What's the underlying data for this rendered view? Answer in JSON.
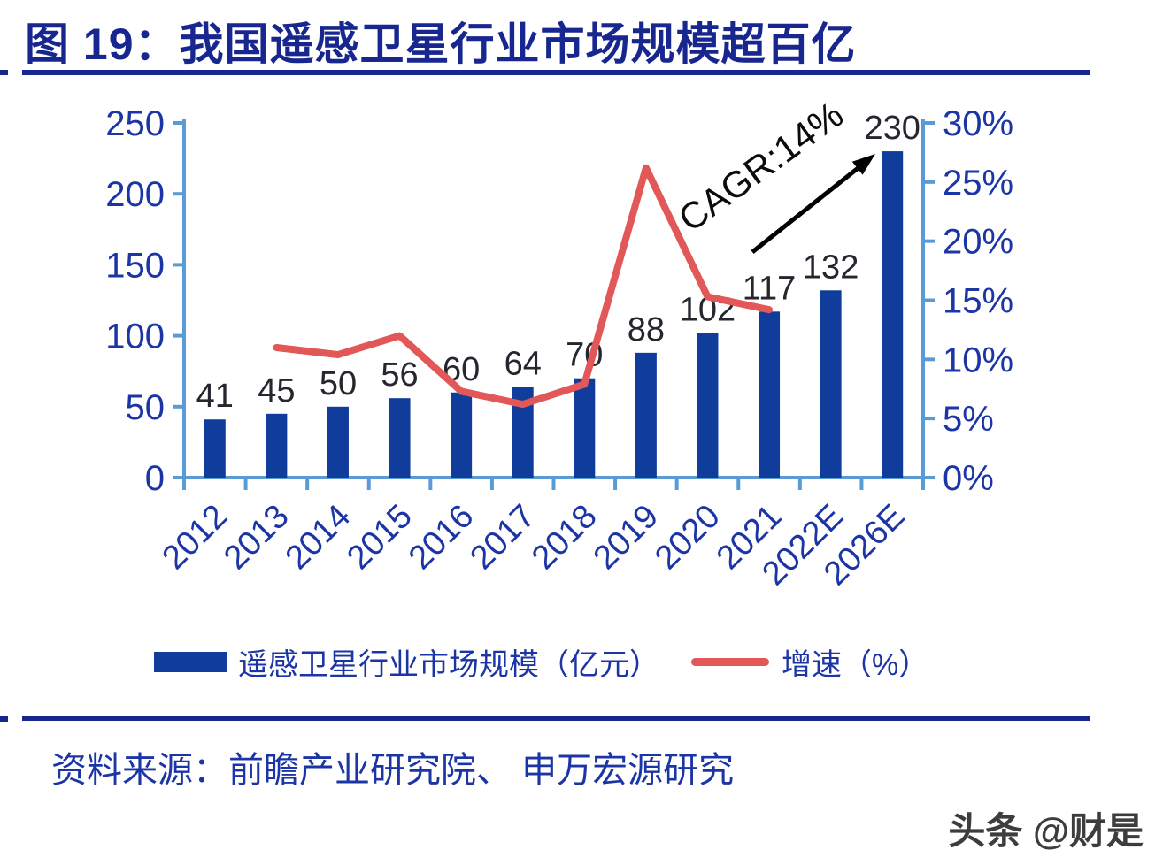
{
  "title": "图 19：我国遥感卫星行业市场规模超百亿",
  "source": "资料来源：前瞻产业研究院、 申万宏源研究",
  "watermark": "头条 @财是",
  "annotation": {
    "text": "CAGR:14%"
  },
  "legend": [
    {
      "type": "bar",
      "label": "遥感卫星行业市场规模（亿元）"
    },
    {
      "type": "line",
      "label": "增速（%）"
    }
  ],
  "colors": {
    "title": "#17278F",
    "bar": "#103D9B",
    "line": "#E25757",
    "axis": "#5B9BD5",
    "axis_label": "#1C35A6",
    "data_label": "#26262E",
    "annotation": "#0B0B0B"
  },
  "chart_data": {
    "type": "bar",
    "title": "我国遥感卫星行业市场规模超百亿",
    "categories": [
      "2012",
      "2013",
      "2014",
      "2015",
      "2016",
      "2017",
      "2018",
      "2019",
      "2020",
      "2021",
      "2022E",
      "2026E"
    ],
    "series": [
      {
        "name": "遥感卫星行业市场规模（亿元）",
        "type": "bar",
        "axis": "left",
        "values": [
          41,
          45,
          50,
          56,
          60,
          64,
          70,
          88,
          102,
          117,
          132,
          230
        ]
      },
      {
        "name": "增速（%）",
        "type": "line",
        "axis": "right",
        "values": [
          null,
          11.0,
          10.4,
          12.0,
          7.3,
          6.2,
          7.9,
          26.2,
          15.3,
          14.2,
          null,
          null
        ]
      }
    ],
    "left_axis": {
      "max": 250,
      "ticks": [
        0,
        50,
        100,
        150,
        200,
        250
      ]
    },
    "right_axis": {
      "max": 30,
      "ticks": [
        0,
        5,
        10,
        15,
        20,
        25,
        30
      ],
      "suffix": "%"
    },
    "grid": false,
    "legend_position": "bottom"
  }
}
